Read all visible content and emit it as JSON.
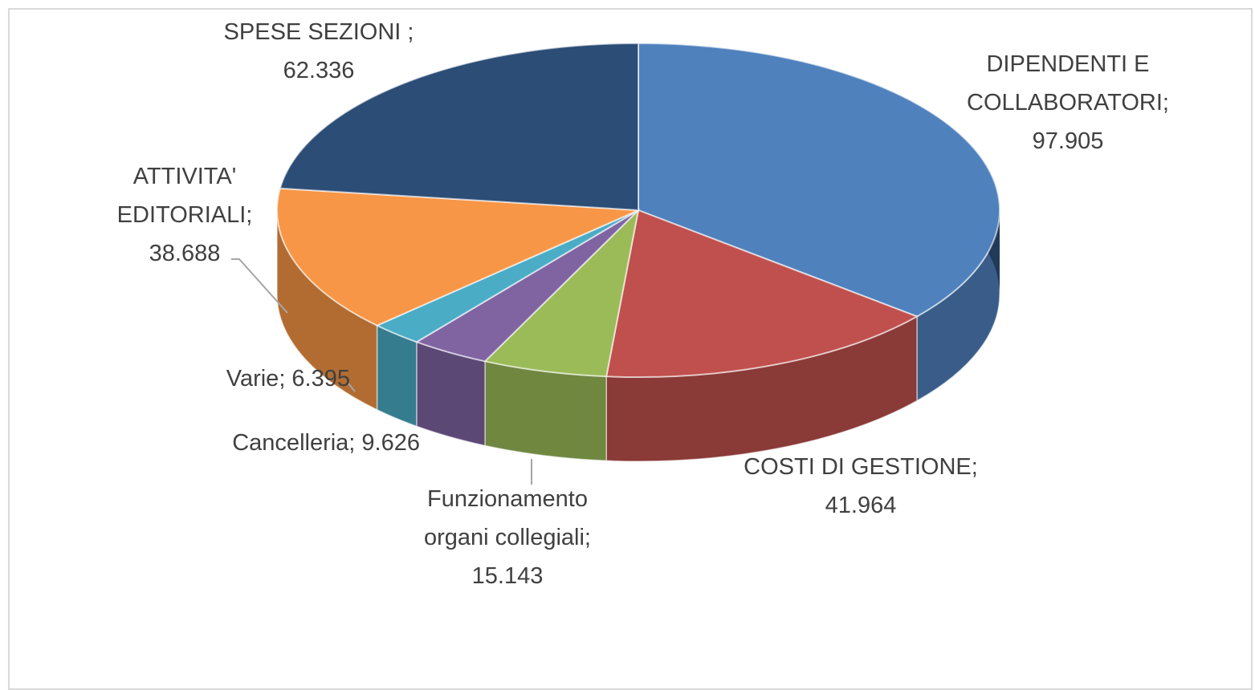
{
  "chart_data": {
    "type": "pie3d",
    "values": [
      97.905,
      41.964,
      15.143,
      9.626,
      6.395,
      38.688,
      62.336
    ],
    "value_labels": [
      "DIPENDENTI E COLLABORATORI; 97.905",
      "COSTI DI GESTIONE; 41.964",
      "Funzionamento organi collegiali; 15.143",
      "Cancelleria; 9.626",
      "Varie; 6.395",
      "ATTIVITA' EDITORIALI; 38.688",
      "SPESE SEZIONI ; 62.336"
    ],
    "colors": [
      "#4f81bd",
      "#c0504d",
      "#9bbb59",
      "#8064a2",
      "#4bacc6",
      "#f79646",
      "#2c4d75"
    ]
  }
}
